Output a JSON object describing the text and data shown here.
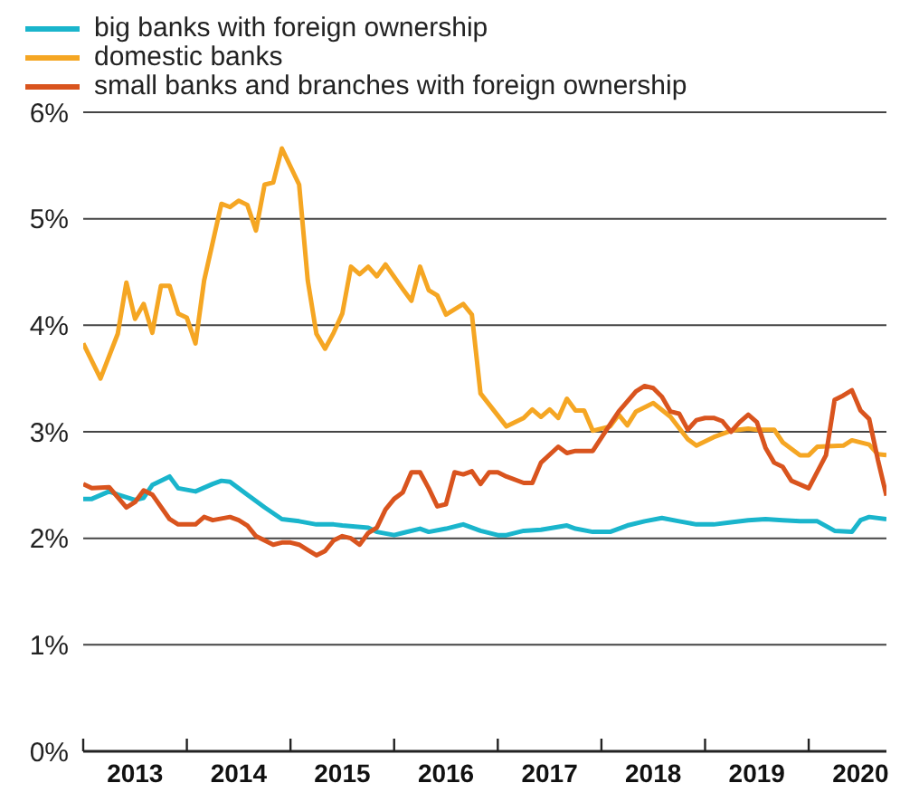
{
  "chart_data": {
    "type": "line",
    "legend": "top left",
    "grid": "y",
    "line_style": "solid",
    "marker": "none",
    "xlim": [
      "2013-01",
      "2020-10"
    ],
    "xticks": [
      {
        "value": "2013-01",
        "label": null
      },
      {
        "value": "2013-07",
        "label": "2013"
      },
      {
        "value": "2014-01",
        "label": null
      },
      {
        "value": "2014-07",
        "label": "2014"
      },
      {
        "value": "2015-01",
        "label": null
      },
      {
        "value": "2015-07",
        "label": "2015"
      },
      {
        "value": "2016-01",
        "label": null
      },
      {
        "value": "2016-07",
        "label": "2016"
      },
      {
        "value": "2017-01",
        "label": null
      },
      {
        "value": "2017-07",
        "label": "2017"
      },
      {
        "value": "2018-01",
        "label": null
      },
      {
        "value": "2018-07",
        "label": "2018"
      },
      {
        "value": "2019-01",
        "label": null
      },
      {
        "value": "2019-07",
        "label": "2019"
      },
      {
        "value": "2020-01",
        "label": null
      },
      {
        "value": "2020-07",
        "label": "2020"
      }
    ],
    "ylim": [
      0,
      6
    ],
    "yticks": [
      {
        "value": 0,
        "label": "0%"
      },
      {
        "value": 1,
        "label": "1%"
      },
      {
        "value": 2,
        "label": "2%"
      },
      {
        "value": 3,
        "label": "3%"
      },
      {
        "value": 4,
        "label": "4%"
      },
      {
        "value": 5,
        "label": "5%"
      },
      {
        "value": 6,
        "label": "6%"
      }
    ],
    "series": [
      {
        "name": "big banks with foreign ownership",
        "color": "#1ab5cc",
        "x": [
          "2013-01",
          "2013-02",
          "2013-04",
          "2013-05",
          "2013-07",
          "2013-08",
          "2013-09",
          "2013-11",
          "2013-12",
          "2014-02",
          "2014-04",
          "2014-05",
          "2014-06",
          "2014-08",
          "2014-10",
          "2014-12",
          "2015-02",
          "2015-04",
          "2015-06",
          "2015-07",
          "2015-10",
          "2015-11",
          "2016-01",
          "2016-02",
          "2016-04",
          "2016-05",
          "2016-07",
          "2016-09",
          "2016-11",
          "2017-01",
          "2017-02",
          "2017-04",
          "2017-06",
          "2017-09",
          "2017-10",
          "2017-12",
          "2018-02",
          "2018-04",
          "2018-06",
          "2018-08",
          "2018-10",
          "2018-12",
          "2019-02",
          "2019-04",
          "2019-06",
          "2019-08",
          "2019-10",
          "2019-12",
          "2020-02",
          "2020-04",
          "2020-06",
          "2020-07",
          "2020-08",
          "2020-10"
        ],
        "values": [
          2.37,
          2.37,
          2.44,
          2.41,
          2.36,
          2.38,
          2.5,
          2.58,
          2.47,
          2.44,
          2.51,
          2.54,
          2.53,
          2.41,
          2.29,
          2.18,
          2.16,
          2.13,
          2.13,
          2.12,
          2.1,
          2.06,
          2.03,
          2.05,
          2.09,
          2.06,
          2.09,
          2.13,
          2.07,
          2.03,
          2.03,
          2.07,
          2.08,
          2.12,
          2.09,
          2.06,
          2.06,
          2.12,
          2.16,
          2.19,
          2.16,
          2.13,
          2.13,
          2.15,
          2.17,
          2.18,
          2.17,
          2.16,
          2.16,
          2.07,
          2.06,
          2.17,
          2.2,
          2.18
        ]
      },
      {
        "name": "domestic banks",
        "color": "#f5a623",
        "x": [
          "2013-01",
          "2013-03",
          "2013-05",
          "2013-06",
          "2013-07",
          "2013-08",
          "2013-09",
          "2013-10",
          "2013-11",
          "2013-12",
          "2014-01",
          "2014-02",
          "2014-03",
          "2014-05",
          "2014-06",
          "2014-07",
          "2014-08",
          "2014-09",
          "2014-10",
          "2014-11",
          "2014-12",
          "2015-01",
          "2015-02",
          "2015-03",
          "2015-04",
          "2015-05",
          "2015-06",
          "2015-07",
          "2015-08",
          "2015-09",
          "2015-10",
          "2015-11",
          "2015-12",
          "2016-02",
          "2016-03",
          "2016-04",
          "2016-05",
          "2016-06",
          "2016-07",
          "2016-09",
          "2016-10",
          "2016-11",
          "2017-02",
          "2017-04",
          "2017-05",
          "2017-06",
          "2017-07",
          "2017-08",
          "2017-09",
          "2017-10",
          "2017-11",
          "2017-12",
          "2018-02",
          "2018-03",
          "2018-04",
          "2018-05",
          "2018-07",
          "2018-09",
          "2018-11",
          "2018-12",
          "2019-02",
          "2019-04",
          "2019-06",
          "2019-07",
          "2019-09",
          "2019-10",
          "2019-12",
          "2020-01",
          "2020-02",
          "2020-05",
          "2020-06",
          "2020-08",
          "2020-09",
          "2020-10"
        ],
        "values": [
          3.83,
          3.5,
          3.92,
          4.4,
          4.06,
          4.2,
          3.93,
          4.37,
          4.37,
          4.11,
          4.07,
          3.83,
          4.42,
          5.14,
          5.11,
          5.17,
          5.13,
          4.89,
          5.32,
          5.34,
          5.66,
          5.49,
          5.32,
          4.42,
          3.92,
          3.78,
          3.93,
          4.11,
          4.55,
          4.48,
          4.55,
          4.46,
          4.57,
          4.34,
          4.23,
          4.55,
          4.33,
          4.28,
          4.1,
          4.2,
          4.1,
          3.36,
          3.05,
          3.13,
          3.21,
          3.14,
          3.21,
          3.13,
          3.31,
          3.2,
          3.2,
          3.01,
          3.05,
          3.16,
          3.06,
          3.19,
          3.27,
          3.14,
          2.93,
          2.87,
          2.95,
          3.01,
          3.03,
          3.02,
          3.02,
          2.9,
          2.78,
          2.78,
          2.86,
          2.87,
          2.92,
          2.88,
          2.79,
          2.78
        ]
      },
      {
        "name": "small banks and branches with foreign ownership",
        "color": "#d9541e",
        "x": [
          "2013-01",
          "2013-02",
          "2013-04",
          "2013-06",
          "2013-07",
          "2013-08",
          "2013-09",
          "2013-11",
          "2013-12",
          "2014-02",
          "2014-03",
          "2014-04",
          "2014-06",
          "2014-07",
          "2014-08",
          "2014-09",
          "2014-11",
          "2014-12",
          "2015-01",
          "2015-02",
          "2015-03",
          "2015-04",
          "2015-05",
          "2015-06",
          "2015-07",
          "2015-08",
          "2015-09",
          "2015-10",
          "2015-11",
          "2015-12",
          "2016-01",
          "2016-02",
          "2016-03",
          "2016-04",
          "2016-05",
          "2016-06",
          "2016-07",
          "2016-08",
          "2016-09",
          "2016-10",
          "2016-11",
          "2016-12",
          "2017-01",
          "2017-02",
          "2017-04",
          "2017-05",
          "2017-06",
          "2017-08",
          "2017-09",
          "2017-10",
          "2017-12",
          "2018-02",
          "2018-03",
          "2018-05",
          "2018-06",
          "2018-07",
          "2018-08",
          "2018-09",
          "2018-10",
          "2018-11",
          "2018-12",
          "2019-01",
          "2019-02",
          "2019-03",
          "2019-04",
          "2019-05",
          "2019-06",
          "2019-07",
          "2019-08",
          "2019-09",
          "2019-10",
          "2019-11",
          "2020-01",
          "2020-03",
          "2020-04",
          "2020-05",
          "2020-06",
          "2020-07",
          "2020-08",
          "2020-09",
          "2020-10"
        ],
        "values": [
          2.51,
          2.47,
          2.48,
          2.29,
          2.34,
          2.45,
          2.41,
          2.18,
          2.13,
          2.13,
          2.2,
          2.17,
          2.2,
          2.17,
          2.12,
          2.02,
          1.94,
          1.96,
          1.96,
          1.94,
          1.89,
          1.84,
          1.88,
          1.98,
          2.02,
          2.0,
          1.94,
          2.05,
          2.1,
          2.27,
          2.37,
          2.43,
          2.62,
          2.62,
          2.47,
          2.3,
          2.32,
          2.62,
          2.6,
          2.63,
          2.51,
          2.62,
          2.62,
          2.58,
          2.52,
          2.52,
          2.71,
          2.86,
          2.8,
          2.82,
          2.82,
          3.07,
          3.19,
          3.38,
          3.43,
          3.41,
          3.33,
          3.19,
          3.17,
          3.02,
          3.11,
          3.13,
          3.13,
          3.1,
          3.0,
          3.09,
          3.16,
          3.09,
          2.85,
          2.71,
          2.67,
          2.54,
          2.47,
          2.78,
          3.3,
          3.34,
          3.39,
          3.2,
          3.12,
          2.74,
          2.4
        ]
      }
    ]
  }
}
